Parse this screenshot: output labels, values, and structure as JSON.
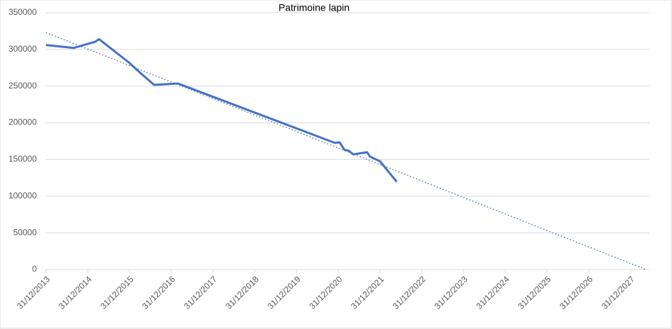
{
  "chart_data": {
    "type": "line",
    "title": "Patrimoine lapin",
    "series": [
      {
        "color": "#4472c4",
        "style": "solid",
        "width": 3,
        "x": [
          2014.0,
          2014.66,
          2015.18,
          2015.27,
          2015.98,
          2016.28,
          2016.59,
          2017.16,
          2020.92,
          2021.03,
          2021.15,
          2021.25,
          2021.36,
          2021.69,
          2021.76,
          2022.0,
          2022.4
        ],
        "values": [
          306000,
          302000,
          310500,
          314000,
          282500,
          267000,
          251700,
          253600,
          172600,
          173500,
          163000,
          162000,
          157000,
          160000,
          154000,
          147500,
          119600
        ]
      },
      {
        "color": "#4472c4",
        "style": "dotted",
        "width": 1.5,
        "x": [
          2014.0,
          2028.37
        ],
        "values": [
          323000,
          0
        ]
      }
    ],
    "xlim": [
      2014.0,
      2028.45
    ],
    "xticks": [
      {
        "value": 2014,
        "label": "31/12/2013"
      },
      {
        "value": 2015,
        "label": "31/12/2014"
      },
      {
        "value": 2016,
        "label": "31/12/2015"
      },
      {
        "value": 2017,
        "label": "31/12/2016"
      },
      {
        "value": 2018,
        "label": "31/12/2017"
      },
      {
        "value": 2019,
        "label": "31/12/2018"
      },
      {
        "value": 2020,
        "label": "31/12/2019"
      },
      {
        "value": 2021,
        "label": "31/12/2020"
      },
      {
        "value": 2022,
        "label": "31/12/2021"
      },
      {
        "value": 2023,
        "label": "31/12/2022"
      },
      {
        "value": 2024,
        "label": "31/12/2023"
      },
      {
        "value": 2025,
        "label": "31/12/2024"
      },
      {
        "value": 2026,
        "label": "31/12/2025"
      },
      {
        "value": 2027,
        "label": "31/12/2026"
      },
      {
        "value": 2028,
        "label": "31/12/2027"
      }
    ],
    "ylim": [
      0,
      350000
    ],
    "yticks": [
      0,
      50000,
      100000,
      150000,
      200000,
      250000,
      300000,
      350000
    ],
    "grid": true
  }
}
